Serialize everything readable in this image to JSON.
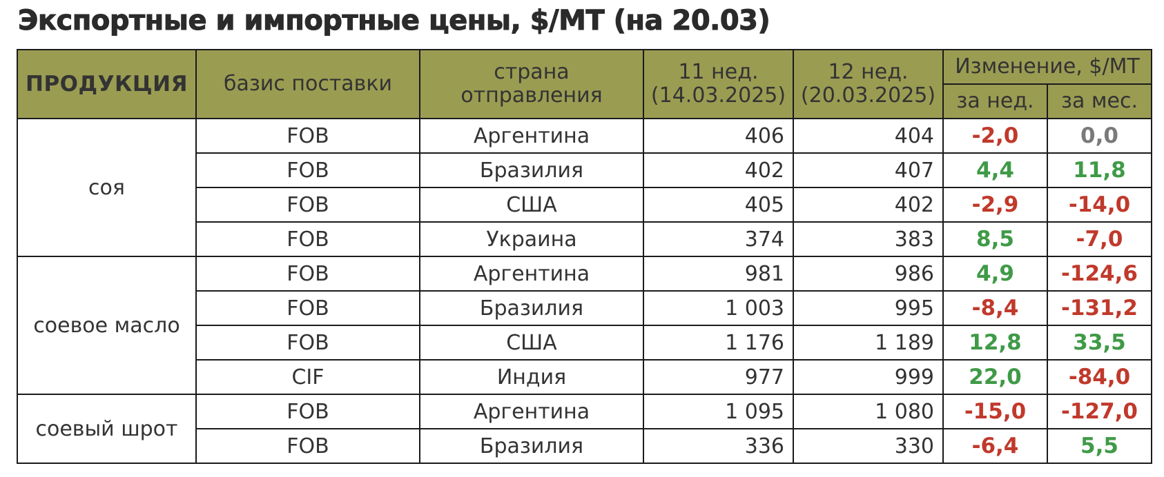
{
  "title": "Экспортные и импортные цены, $/МТ (на 20.03)",
  "colors": {
    "header_bg": "#9a9c52",
    "negative": "#c0392b",
    "positive": "#3f9a47",
    "zero": "#7a7a7a"
  },
  "header": {
    "product": "ПРОДУКЦИЯ",
    "basis": "базис поставки",
    "country_line1": "страна",
    "country_line2": "отправления",
    "wk11_line1": "11 нед.",
    "wk11_line2": "(14.03.2025)",
    "wk12_line1": "12 нед.",
    "wk12_line2": "(20.03.2025)",
    "change": "Изменение, $/МТ",
    "per_week": "за нед.",
    "per_month": "за мес."
  },
  "chart_data": {
    "type": "table",
    "title": "Экспортные и импортные цены, $/МТ (на 20.03)",
    "columns": [
      "ПРОДУКЦИЯ",
      "базис поставки",
      "страна отправления",
      "11 нед. (14.03.2025)",
      "12 нед. (20.03.2025)",
      "Изменение, $/МТ за нед.",
      "Изменение, $/МТ за мес."
    ],
    "groups": [
      {
        "product": "соя",
        "rows": [
          {
            "basis": "FOB",
            "country": "Аргентина",
            "w11": "406",
            "w12": "404",
            "wk": "-2,0",
            "mo": "0,0",
            "wk_sign": "neg",
            "mo_sign": "zero"
          },
          {
            "basis": "FOB",
            "country": "Бразилия",
            "w11": "402",
            "w12": "407",
            "wk": "4,4",
            "mo": "11,8",
            "wk_sign": "pos",
            "mo_sign": "pos"
          },
          {
            "basis": "FOB",
            "country": "США",
            "w11": "405",
            "w12": "402",
            "wk": "-2,9",
            "mo": "-14,0",
            "wk_sign": "neg",
            "mo_sign": "neg"
          },
          {
            "basis": "FOB",
            "country": "Украина",
            "w11": "374",
            "w12": "383",
            "wk": "8,5",
            "mo": "-7,0",
            "wk_sign": "pos",
            "mo_sign": "neg"
          }
        ]
      },
      {
        "product": "соевое масло",
        "rows": [
          {
            "basis": "FOB",
            "country": "Аргентина",
            "w11": "981",
            "w12": "986",
            "wk": "4,9",
            "mo": "-124,6",
            "wk_sign": "pos",
            "mo_sign": "neg"
          },
          {
            "basis": "FOB",
            "country": "Бразилия",
            "w11": "1 003",
            "w12": "995",
            "wk": "-8,4",
            "mo": "-131,2",
            "wk_sign": "neg",
            "mo_sign": "neg"
          },
          {
            "basis": "FOB",
            "country": "США",
            "w11": "1 176",
            "w12": "1 189",
            "wk": "12,8",
            "mo": "33,5",
            "wk_sign": "pos",
            "mo_sign": "pos"
          },
          {
            "basis": "CIF",
            "country": "Индия",
            "w11": "977",
            "w12": "999",
            "wk": "22,0",
            "mo": "-84,0",
            "wk_sign": "pos",
            "mo_sign": "neg"
          }
        ]
      },
      {
        "product": "соевый шрот",
        "rows": [
          {
            "basis": "FOB",
            "country": "Аргентина",
            "w11": "1 095",
            "w12": "1 080",
            "wk": "-15,0",
            "mo": "-127,0",
            "wk_sign": "neg",
            "mo_sign": "neg"
          },
          {
            "basis": "FOB",
            "country": "Бразилия",
            "w11": "336",
            "w12": "330",
            "wk": "-6,4",
            "mo": "5,5",
            "wk_sign": "neg",
            "mo_sign": "pos"
          }
        ]
      }
    ]
  }
}
